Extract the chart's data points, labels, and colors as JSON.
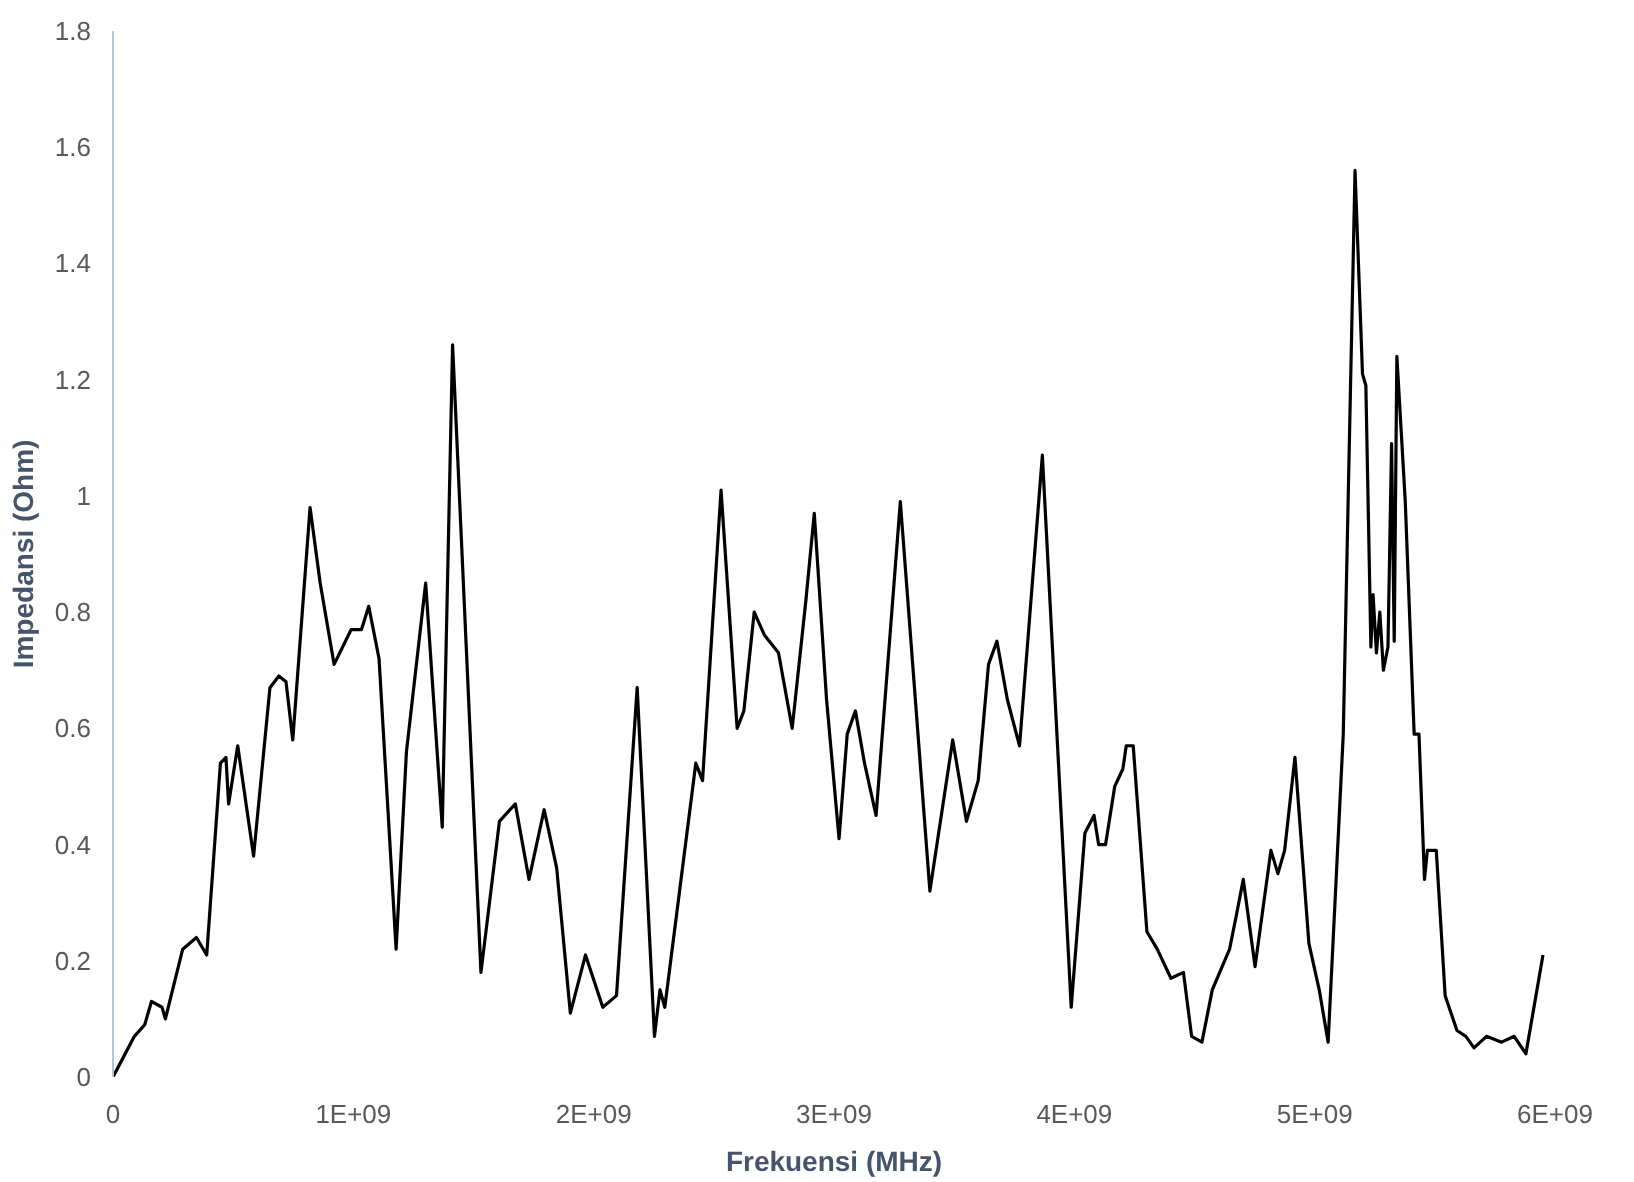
{
  "chart_data": {
    "type": "line",
    "xlabel": "Frekuensi (MHz)",
    "ylabel": "Impedansi (Ohm)",
    "xlim": [
      0,
      6000000000.0
    ],
    "ylim": [
      0,
      1.8
    ],
    "xticks": [
      0,
      {
        "value": 1000000000.0,
        "label": "1E+09"
      },
      {
        "value": 2000000000.0,
        "label": "2E+09"
      },
      {
        "value": 3000000000.0,
        "label": "3E+09"
      },
      {
        "value": 4000000000.0,
        "label": "4E+09"
      },
      {
        "value": 5000000000.0,
        "label": "5E+09"
      },
      {
        "value": 6000000000.0,
        "label": "6E+09"
      }
    ],
    "yticks": [
      0,
      0.2,
      0.4,
      0.6,
      0.8,
      1,
      1.2,
      1.4,
      1.6,
      1.8
    ],
    "grid": false,
    "marker": "none",
    "line_style": "solid",
    "series": [
      {
        "color": "#000000",
        "x": [
          0,
          89000000.0,
          132000000.0,
          160000000.0,
          204000000.0,
          218000000.0,
          290000000.0,
          347000000.0,
          390000000.0,
          447000000.0,
          470000000.0,
          481000000.0,
          519000000.0,
          585000000.0,
          653000000.0,
          690000000.0,
          720000000.0,
          748000000.0,
          820000000.0,
          862000000.0,
          920000000.0,
          991000000.0,
          1034000000.0,
          1064000000.0,
          1107000000.0,
          1178000000.0,
          1221000000.0,
          1301000000.0,
          1370000000.0,
          1413000000.0,
          1531000000.0,
          1608000000.0,
          1674000000.0,
          1731000000.0,
          1794000000.0,
          1846000000.0,
          1903000000.0,
          1966000000.0,
          2038000000.0,
          2095000000.0,
          2181000000.0,
          2253000000.0,
          2276000000.0,
          2296000000.0,
          2425000000.0,
          2453000000.0,
          2530000000.0,
          2597000000.0,
          2625000000.0,
          2668000000.0,
          2711000000.0,
          2769000000.0,
          2826000000.0,
          2883000000.0,
          2918000000.0,
          2969000000.0,
          3021000000.0,
          3055000000.0,
          3089000000.0,
          3127000000.0,
          3175000000.0,
          3276000000.0,
          3399000000.0,
          3494000000.0,
          3551000000.0,
          3600000000.0,
          3643000000.0,
          3678000000.0,
          3721000000.0,
          3772000000.0,
          3867000000.0,
          3987000000.0,
          4044000000.0,
          4082000000.0,
          4101000000.0,
          4130000000.0,
          4168000000.0,
          4202000000.0,
          4216000000.0,
          4245000000.0,
          4302000000.0,
          4345000000.0,
          4402000000.0,
          4454000000.0,
          4488000000.0,
          4531000000.0,
          4574000000.0,
          4646000000.0,
          4675000000.0,
          4703000000.0,
          4752000000.0,
          4818000000.0,
          4847000000.0,
          4875000000.0,
          4918000000.0,
          4976000000.0,
          5019000000.0,
          5056000000.0,
          5119000000.0,
          5168000000.0,
          5199000000.0,
          5213000000.0,
          5234000000.0,
          5243000000.0,
          5257000000.0,
          5271000000.0,
          5286000000.0,
          5305000000.0,
          5320000000.0,
          5331000000.0,
          5342000000.0,
          5377000000.0,
          5414000000.0,
          5434000000.0,
          5457000000.0,
          5469000000.0,
          5506000000.0,
          5543000000.0,
          5592000000.0,
          5629000000.0,
          5663000000.0,
          5715000000.0,
          5778000000.0,
          5830000000.0,
          5879000000.0,
          5950000000.0
        ],
        "values": [
          0,
          0.07,
          0.09,
          0.13,
          0.12,
          0.1,
          0.22,
          0.24,
          0.21,
          0.54,
          0.55,
          0.47,
          0.57,
          0.38,
          0.67,
          0.69,
          0.68,
          0.58,
          0.98,
          0.85,
          0.71,
          0.77,
          0.77,
          0.81,
          0.72,
          0.22,
          0.56,
          0.85,
          0.43,
          1.26,
          0.18,
          0.44,
          0.47,
          0.34,
          0.46,
          0.36,
          0.11,
          0.21,
          0.12,
          0.14,
          0.67,
          0.07,
          0.15,
          0.12,
          0.54,
          0.51,
          1.01,
          0.6,
          0.63,
          0.8,
          0.76,
          0.73,
          0.6,
          0.82,
          0.97,
          0.65,
          0.41,
          0.59,
          0.63,
          0.54,
          0.45,
          0.99,
          0.32,
          0.58,
          0.44,
          0.51,
          0.71,
          0.75,
          0.65,
          0.57,
          1.07,
          0.12,
          0.42,
          0.45,
          0.4,
          0.4,
          0.5,
          0.53,
          0.57,
          0.57,
          0.25,
          0.22,
          0.17,
          0.18,
          0.07,
          0.06,
          0.15,
          0.22,
          0.28,
          0.34,
          0.19,
          0.39,
          0.35,
          0.39,
          0.55,
          0.23,
          0.15,
          0.06,
          0.59,
          1.56,
          1.21,
          1.19,
          0.74,
          0.83,
          0.73,
          0.8,
          0.7,
          0.74,
          1.09,
          0.75,
          1.24,
          0.99,
          0.59,
          0.59,
          0.34,
          0.39,
          0.39,
          0.14,
          0.08,
          0.07,
          0.05,
          0.07,
          0.06,
          0.07,
          0.04,
          0.21
        ]
      }
    ]
  }
}
